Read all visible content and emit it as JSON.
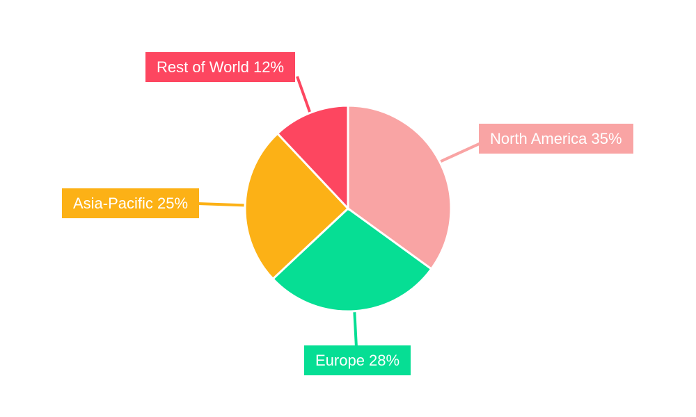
{
  "chart_data": {
    "type": "pie",
    "title": "",
    "categories": [
      "North America",
      "Europe",
      "Asia-Pacific",
      "Rest of World"
    ],
    "values": [
      35,
      28,
      25,
      12
    ],
    "unit": "%",
    "labels": [
      "North America 35%",
      "Europe 28%",
      "Asia-Pacific 25%",
      "Rest of World 12%"
    ],
    "colors": [
      "#F9A4A4",
      "#06DE94",
      "#FCB116",
      "#FD4660"
    ],
    "slice_separator_color": "#FFFFFF",
    "label_text_color": "#FFFFFF",
    "background": "#FFFFFF",
    "start_angle_deg": 0,
    "direction": "clockwise",
    "legend": "none",
    "annotation_style": "callout-boxes-with-leader-lines"
  }
}
